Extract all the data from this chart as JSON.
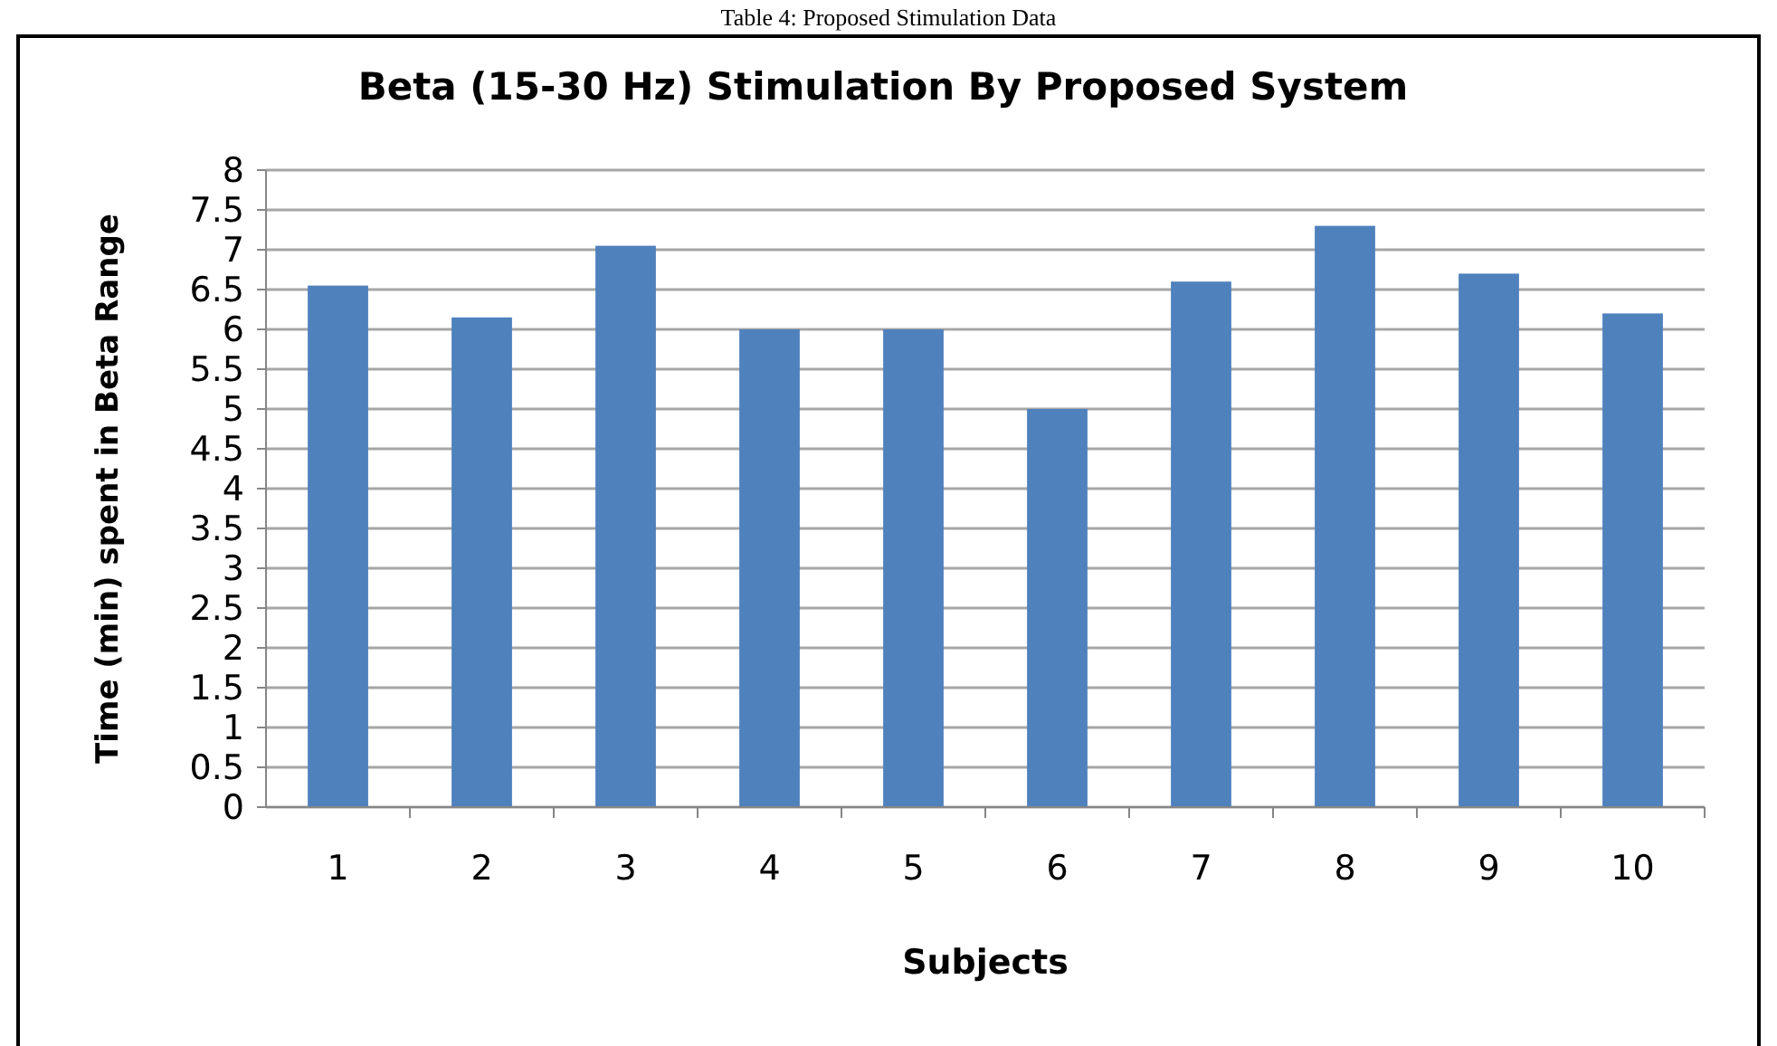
{
  "chart_data": {
    "type": "bar",
    "title": "Beta (15-30 Hz) Stimulation By Proposed System",
    "xlabel": "Subjects",
    "ylabel": "Time (min) spent in Beta Range",
    "annotations": [
      "Table 4: Proposed Stimulation Data"
    ],
    "categories": [
      "1",
      "2",
      "3",
      "4",
      "5",
      "6",
      "7",
      "8",
      "9",
      "10"
    ],
    "values": [
      6.55,
      6.15,
      7.05,
      6,
      6,
      5,
      6.6,
      7.3,
      6.7,
      6.2
    ],
    "color": "#4f81bd",
    "ylim": [
      0,
      8
    ],
    "yticks": [
      0,
      0.5,
      1,
      1.5,
      2,
      2.5,
      3,
      3.5,
      4,
      4.5,
      5,
      5.5,
      6,
      6.5,
      7,
      7.5,
      8
    ],
    "grid": "y"
  }
}
